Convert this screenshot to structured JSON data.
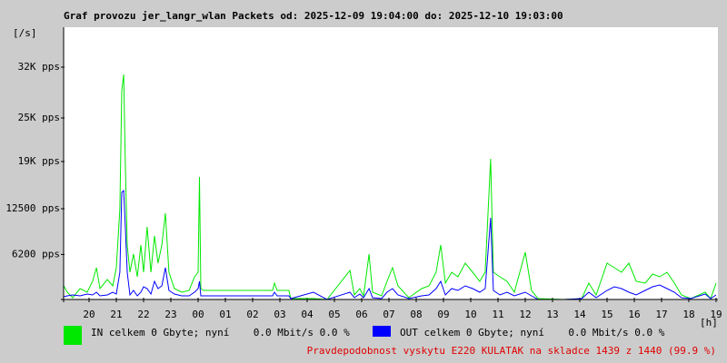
{
  "chart_data": {
    "type": "line",
    "title": "Graf provozu jer_langr_wlan Packets od: 2025-12-09 19:04:00 do: 2025-12-10 19:03:00",
    "ylabel": "[/s]",
    "xlabel": "[h]",
    "annotation": "Pravdepodobnost vyskytu E220 KULATAK na skladce 1439 z 1440 (99.9 %)",
    "xlim": [
      0,
      24
    ],
    "ylim": [
      0,
      37500
    ],
    "grid": false,
    "xticks": [
      {
        "value": 1,
        "label": "20"
      },
      {
        "value": 2,
        "label": "21"
      },
      {
        "value": 3,
        "label": "22"
      },
      {
        "value": 4,
        "label": "23"
      },
      {
        "value": 5,
        "label": "00"
      },
      {
        "value": 6,
        "label": "01"
      },
      {
        "value": 7,
        "label": "02"
      },
      {
        "value": 8,
        "label": "03"
      },
      {
        "value": 9,
        "label": "04"
      },
      {
        "value": 10,
        "label": "05"
      },
      {
        "value": 11,
        "label": "06"
      },
      {
        "value": 12,
        "label": "07"
      },
      {
        "value": 13,
        "label": "08"
      },
      {
        "value": 14,
        "label": "09"
      },
      {
        "value": 15,
        "label": "10"
      },
      {
        "value": 16,
        "label": "11"
      },
      {
        "value": 17,
        "label": "12"
      },
      {
        "value": 18,
        "label": "13"
      },
      {
        "value": 19,
        "label": "14"
      },
      {
        "value": 20,
        "label": "15"
      },
      {
        "value": 21,
        "label": "16"
      },
      {
        "value": 22,
        "label": "17"
      },
      {
        "value": 23,
        "label": "18"
      },
      {
        "value": 24,
        "label": "19"
      }
    ],
    "yticks": [
      {
        "value": 6200,
        "label": "6200 pps"
      },
      {
        "value": 12500,
        "label": "12500 pps"
      },
      {
        "value": 19000,
        "label": "19K pps"
      },
      {
        "value": 25000,
        "label": "25K pps"
      },
      {
        "value": 32000,
        "label": "32K pps"
      }
    ],
    "x": [
      0.07,
      0.2,
      0.4,
      0.67,
      0.93,
      1.13,
      1.27,
      1.4,
      1.67,
      1.87,
      2.0,
      2.13,
      2.2,
      2.27,
      2.33,
      2.4,
      2.5,
      2.63,
      2.77,
      2.9,
      3.0,
      3.13,
      3.27,
      3.4,
      3.53,
      3.67,
      3.8,
      3.93,
      4.13,
      4.4,
      4.67,
      4.87,
      5.0,
      5.05,
      5.1,
      5.2,
      6.4,
      7.73,
      7.8,
      7.9,
      8.33,
      8.4,
      9.23,
      9.73,
      10.57,
      10.73,
      10.93,
      11.07,
      11.27,
      11.4,
      11.73,
      11.93,
      12.13,
      12.33,
      12.73,
      13.2,
      13.47,
      13.73,
      13.9,
      14.07,
      14.3,
      14.53,
      14.8,
      15.07,
      15.33,
      15.53,
      15.73,
      15.83,
      16.07,
      16.33,
      16.6,
      17.0,
      17.23,
      17.47,
      18.4,
      19.07,
      19.33,
      19.6,
      20.0,
      20.27,
      20.53,
      20.8,
      21.07,
      21.4,
      21.67,
      21.93,
      22.2,
      22.47,
      22.73,
      23.07,
      23.6,
      23.8,
      24.0
    ],
    "series": [
      {
        "name": "IN celkem 0 Gbyte; nyní    0.0 Mbit/s 0.0 %",
        "color": "#00e800",
        "values": [
          1875,
          1000,
          250,
          1500,
          1000,
          2500,
          4375,
          1500,
          2750,
          1875,
          4375,
          12500,
          28750,
          31000,
          18750,
          7500,
          3750,
          6250,
          3125,
          7500,
          3750,
          10000,
          3750,
          8750,
          5000,
          7500,
          11875,
          3750,
          1500,
          1000,
          1250,
          3125,
          3750,
          16875,
          1500,
          1250,
          1250,
          1250,
          2250,
          1250,
          1250,
          125,
          125,
          0,
          4000,
          625,
          1500,
          500,
          6250,
          1000,
          500,
          2500,
          4375,
          1875,
          250,
          1500,
          1875,
          3750,
          7500,
          2250,
          3750,
          3125,
          5000,
          3750,
          2500,
          3750,
          19375,
          3750,
          3125,
          2500,
          1000,
          6500,
          1250,
          125,
          0,
          125,
          2250,
          625,
          5000,
          4375,
          3750,
          5000,
          2500,
          2250,
          3500,
          3125,
          3750,
          2250,
          625,
          125,
          1000,
          125,
          2250
        ]
      },
      {
        "name": "OUT celkem 0 Gbyte; nyní    0.0 Mbit/s 0.0 %",
        "color": "#0000ff",
        "values": [
          375,
          500,
          625,
          500,
          750,
          625,
          1000,
          500,
          625,
          1000,
          750,
          3750,
          14750,
          15000,
          10000,
          3750,
          625,
          1250,
          500,
          1000,
          1750,
          1500,
          750,
          2500,
          1500,
          1875,
          4375,
          1250,
          750,
          500,
          500,
          1000,
          1500,
          2500,
          500,
          500,
          500,
          500,
          1000,
          500,
          500,
          125,
          1000,
          0,
          1000,
          250,
          750,
          250,
          1500,
          250,
          125,
          1000,
          1500,
          625,
          125,
          500,
          625,
          1500,
          2500,
          625,
          1500,
          1250,
          1875,
          1500,
          1000,
          1500,
          11250,
          1250,
          625,
          1000,
          500,
          1000,
          500,
          0,
          0,
          125,
          1000,
          250,
          1250,
          1750,
          1500,
          1000,
          625,
          1250,
          1750,
          2000,
          1500,
          1000,
          250,
          125,
          750,
          125,
          625
        ]
      }
    ]
  }
}
